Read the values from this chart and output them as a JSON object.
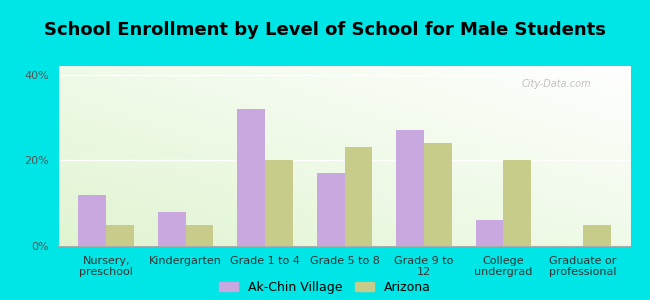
{
  "title": "School Enrollment by Level of School for Male Students",
  "categories": [
    "Nursery,\npreschool",
    "Kindergarten",
    "Grade 1 to 4",
    "Grade 5 to 8",
    "Grade 9 to\n12",
    "College\nundergrad",
    "Graduate or\nprofessional"
  ],
  "ak_chin": [
    12.0,
    8.0,
    32.0,
    17.0,
    27.0,
    6.0,
    0.0
  ],
  "arizona": [
    5.0,
    5.0,
    20.0,
    23.0,
    24.0,
    20.0,
    5.0
  ],
  "ak_chin_color": "#c9a8e0",
  "arizona_color": "#c8cc8a",
  "background_color": "#00e5e5",
  "yticks": [
    0,
    20,
    40
  ],
  "ylim": [
    0,
    42
  ],
  "legend_ak_chin": "Ak-Chin Village",
  "legend_arizona": "Arizona",
  "bar_width": 0.35,
  "title_fontsize": 13,
  "tick_fontsize": 8,
  "legend_fontsize": 9,
  "watermark": "City-Data.com"
}
